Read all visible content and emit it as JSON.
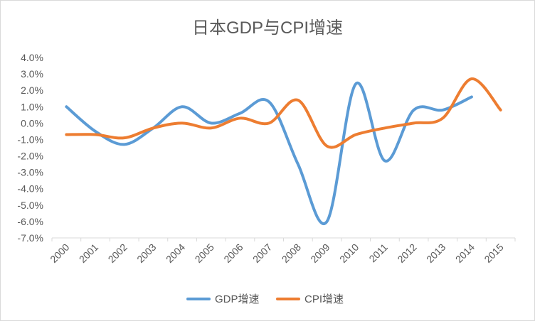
{
  "chart_data": {
    "type": "line",
    "title": "日本GDP与CPI增速",
    "categories": [
      "2000",
      "2001",
      "2002",
      "2003",
      "2004",
      "2005",
      "2006",
      "2007",
      "2008",
      "2009",
      "2010",
      "2011",
      "2012",
      "2013",
      "2014",
      "2015"
    ],
    "y_ticks": [
      "4.0%",
      "3.0%",
      "2.0%",
      "1.0%",
      "0.0%",
      "-1.0%",
      "-2.0%",
      "-3.0%",
      "-4.0%",
      "-5.0%",
      "-6.0%",
      "-7.0%"
    ],
    "ylim": [
      -7,
      4
    ],
    "y_unit": "%",
    "grid": false,
    "smooth": true,
    "legend_position": "bottom",
    "series": [
      {
        "name": "GDP增速",
        "color": "#5b9bd5",
        "values": [
          1.0,
          -0.5,
          -1.3,
          -0.3,
          1.0,
          0.0,
          0.6,
          1.3,
          -2.5,
          -6.0,
          2.4,
          -2.3,
          0.8,
          0.8,
          1.6,
          null
        ]
      },
      {
        "name": "CPI增速",
        "color": "#ed7d31",
        "values": [
          -0.7,
          -0.7,
          -0.9,
          -0.3,
          0.0,
          -0.3,
          0.3,
          0.0,
          1.4,
          -1.4,
          -0.7,
          -0.3,
          0.0,
          0.3,
          2.7,
          0.8
        ]
      }
    ]
  }
}
